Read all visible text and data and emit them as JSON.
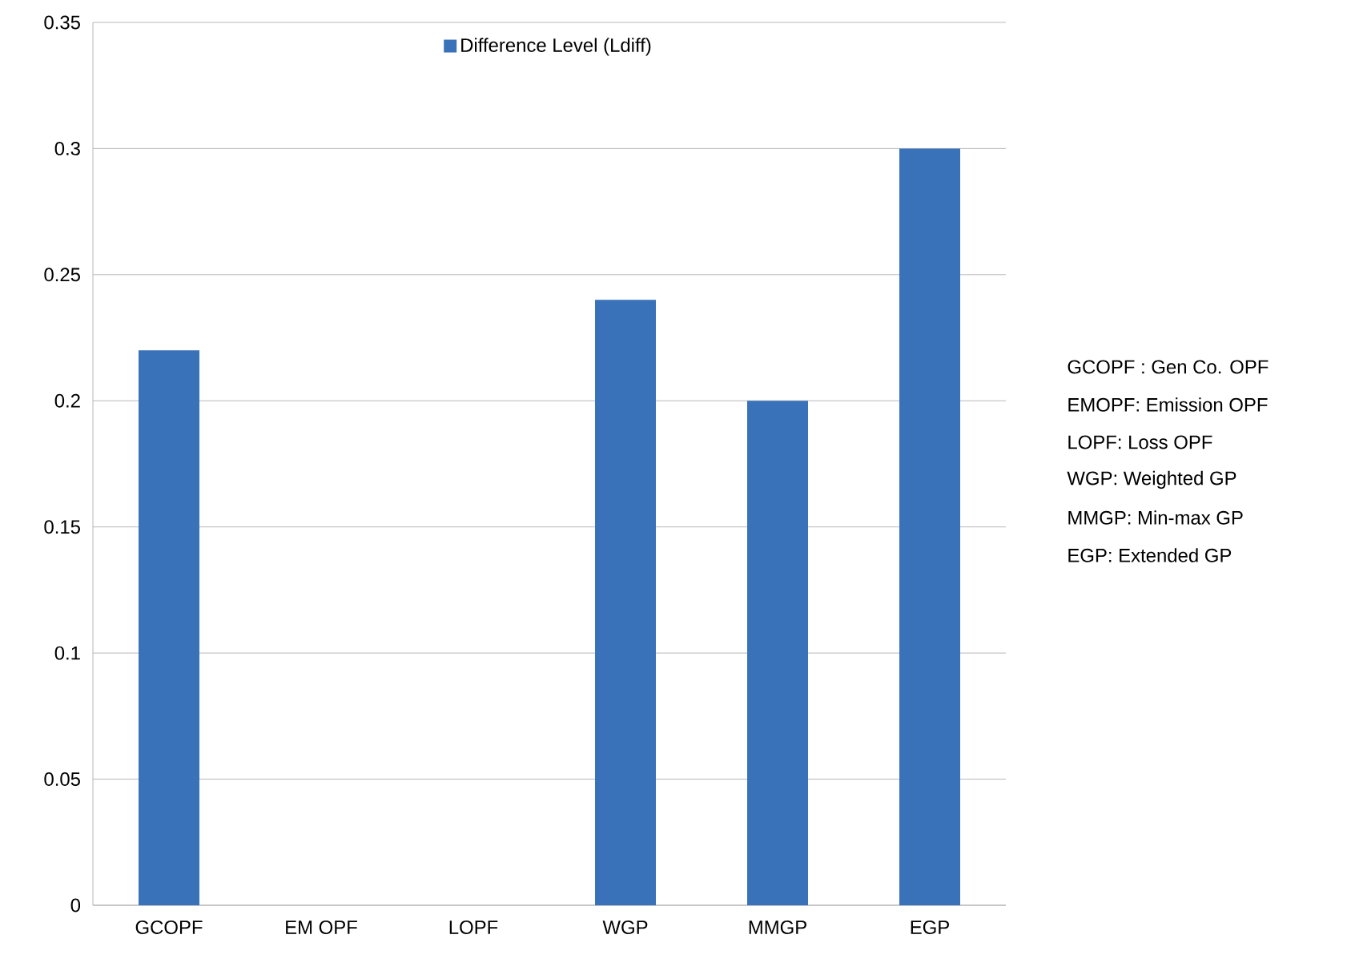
{
  "chart_data": {
    "type": "bar",
    "categories": [
      "GCOPF",
      "EM OPF",
      "LOPF",
      "WGP",
      "MMGP",
      "EGP"
    ],
    "series": [
      {
        "name": "Difference Level (Ldiff)",
        "color": "#3a72ba",
        "values": [
          0.22,
          0,
          0,
          0.24,
          0.2,
          0.3
        ]
      }
    ],
    "ylim": [
      0,
      0.35
    ],
    "yticks": [
      0,
      0.05,
      0.1,
      0.15,
      0.2,
      0.25,
      0.3,
      0.35
    ],
    "grid": "y",
    "legend": "top",
    "annotations": [
      "GCOPF : Gen Co. OPF",
      "EMOPF: Emission OPF",
      "LOPF:  Loss OPF",
      "WGP: Weighted GP",
      "MMGP: Min-max GP",
      "EGP: Extended GP"
    ]
  }
}
